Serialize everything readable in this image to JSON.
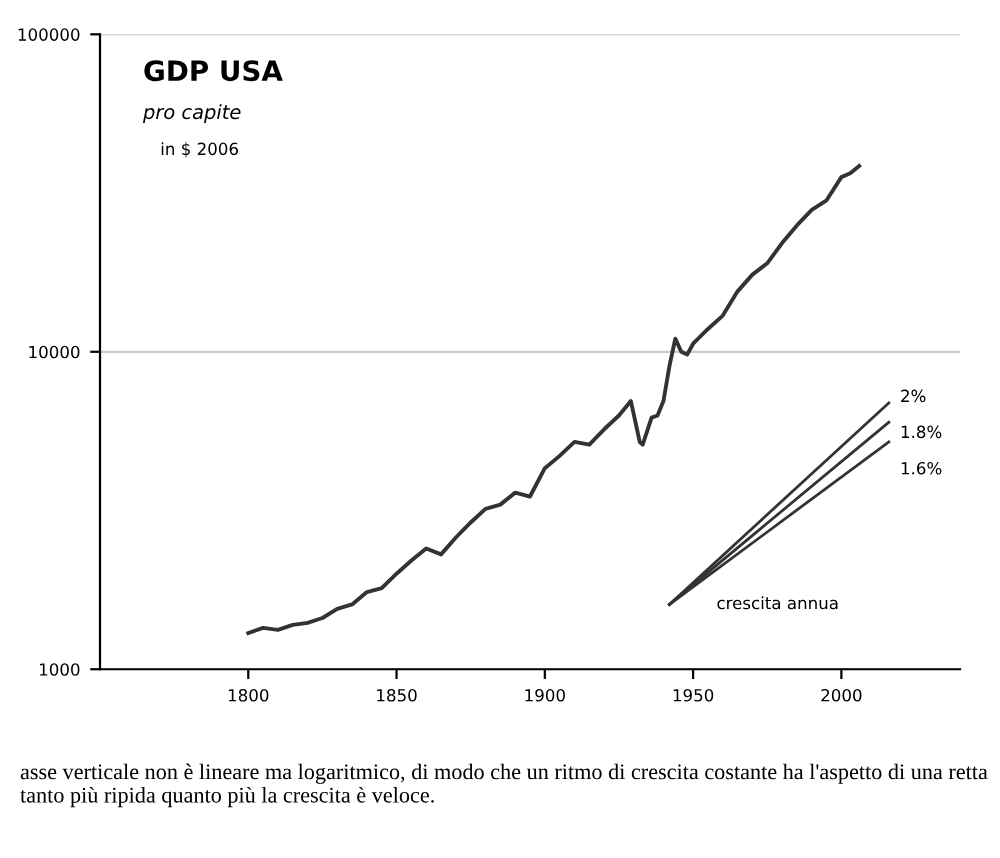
{
  "chart_data": {
    "type": "line",
    "title": "GDP USA",
    "subtitle": "pro capite",
    "annotations": [
      "in $ 2006",
      "crescita annua",
      "asse verticale non è lineare ma logaritmico, di modo che un ritmo di crescita costante ha l'aspetto di una retta tanto più ripida quanto più la crescita è veloce."
    ],
    "series": [
      {
        "color": "#333333",
        "x": [
          1800,
          1805,
          1810,
          1815,
          1820,
          1825,
          1830,
          1835,
          1840,
          1845,
          1850,
          1855,
          1860,
          1865,
          1870,
          1875,
          1880,
          1885,
          1890,
          1895,
          1900,
          1905,
          1910,
          1915,
          1920,
          1925,
          1929,
          1932,
          1933,
          1936,
          1938,
          1940,
          1942,
          1944,
          1946,
          1948,
          1950,
          1955,
          1960,
          1965,
          1970,
          1975,
          1980,
          1985,
          1990,
          1995,
          2000,
          2003,
          2006
        ],
        "values": [
          1300,
          1350,
          1330,
          1380,
          1400,
          1450,
          1550,
          1600,
          1750,
          1800,
          2000,
          2200,
          2400,
          2300,
          2600,
          2900,
          3200,
          3300,
          3600,
          3500,
          4300,
          4700,
          5200,
          5100,
          5700,
          6300,
          7000,
          5200,
          5100,
          6200,
          6300,
          7000,
          9000,
          11000,
          10000,
          9800,
          10600,
          11800,
          13000,
          15500,
          17500,
          19000,
          22000,
          25000,
          28000,
          30000,
          35500,
          36500,
          38500
        ]
      },
      {
        "name": "2%",
        "color": "#333333",
        "x": [
          1942,
          2016
        ],
        "values": [
          1600,
          6900
        ]
      },
      {
        "name": "1.8%",
        "color": "#333333",
        "x": [
          1942,
          2016
        ],
        "values": [
          1600,
          6000
        ]
      },
      {
        "name": "1.6%",
        "color": "#333333",
        "x": [
          1942,
          2016
        ],
        "values": [
          1600,
          5200
        ]
      }
    ],
    "log": "y",
    "ylim": [
      1000,
      100000
    ],
    "yticks": [
      1000,
      10000,
      100000
    ],
    "xlim": [
      1750,
      2040
    ],
    "xticks": [
      1800,
      1850,
      1900,
      1950,
      2000
    ],
    "grid": "y",
    "legend": false,
    "marker": "none",
    "line_style": "solid"
  }
}
